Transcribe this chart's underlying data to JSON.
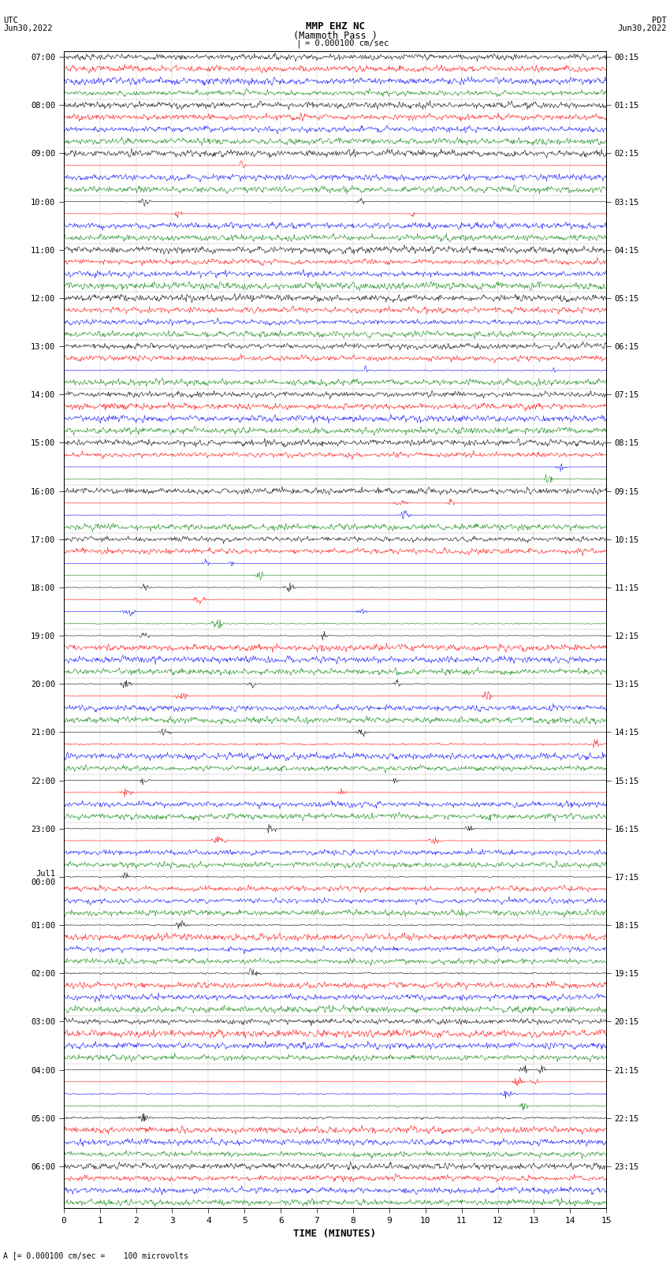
{
  "title_line1": "MMP EHZ NC",
  "title_line2": "(Mammoth Pass )",
  "scale_label": "= 0.000100 cm/sec",
  "bottom_label": "A [= 0.000100 cm/sec =    100 microvolts",
  "utc_label": "UTC\nJun30,2022",
  "pdt_label": "PDT\nJun30,2022",
  "xlabel": "TIME (MINUTES)",
  "left_times_major": [
    "07:00",
    "08:00",
    "09:00",
    "10:00",
    "11:00",
    "12:00",
    "13:00",
    "14:00",
    "15:00",
    "16:00",
    "17:00",
    "18:00",
    "19:00",
    "20:00",
    "21:00",
    "22:00",
    "23:00",
    "Jul1\n00:00",
    "01:00",
    "02:00",
    "03:00",
    "04:00",
    "05:00",
    "06:00"
  ],
  "right_times_major": [
    "00:15",
    "01:15",
    "02:15",
    "03:15",
    "04:15",
    "05:15",
    "06:15",
    "07:15",
    "08:15",
    "09:15",
    "10:15",
    "11:15",
    "12:15",
    "13:15",
    "14:15",
    "15:15",
    "16:15",
    "17:15",
    "18:15",
    "19:15",
    "20:15",
    "21:15",
    "22:15",
    "23:15"
  ],
  "trace_colors": [
    "black",
    "red",
    "blue",
    "green"
  ],
  "bg_color": "#ffffff",
  "n_traces": 96,
  "n_minutes": 15,
  "samples_per_trace": 900,
  "noise_scale": 0.12
}
